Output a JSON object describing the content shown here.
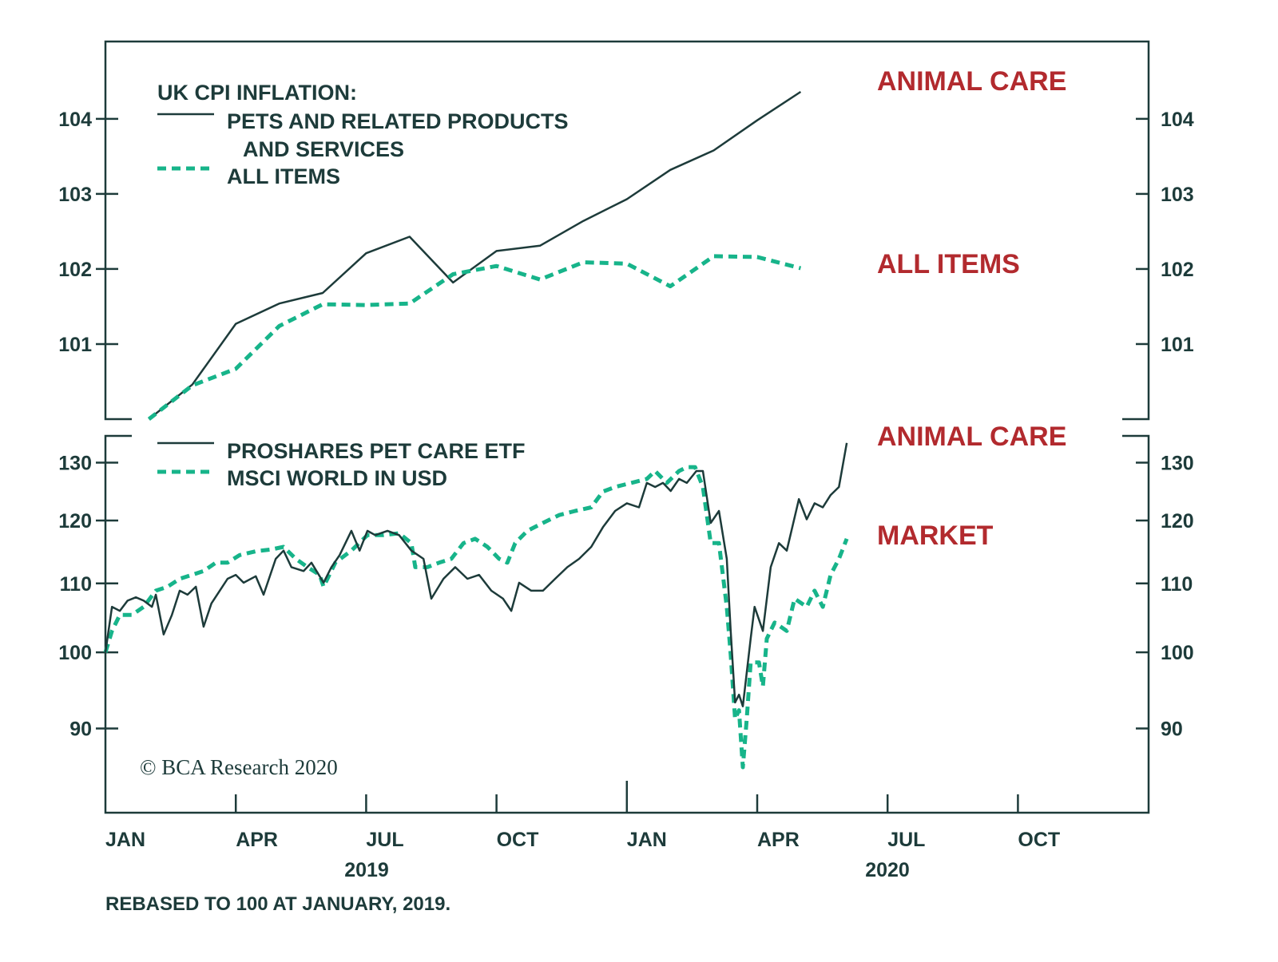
{
  "colors": {
    "axis": "#1d3b3a",
    "pets": "#1d3b3a",
    "market": "#17b48a",
    "annotation": "#b22a2e"
  },
  "chart_data": [
    {
      "type": "line",
      "title": "UK CPI INFLATION:",
      "x_unit": "months since January 2019",
      "ylim": [
        100,
        105.03
      ],
      "yticks": [
        101,
        102,
        103,
        104
      ],
      "ytick_labels": [
        "101",
        "102",
        "103",
        "104"
      ],
      "legend": {
        "placement": "top-left",
        "entries": [
          "PETS AND RELATED PRODUCTS",
          "AND SERVICES",
          "ALL ITEMS"
        ]
      },
      "annotations": [
        "ANIMAL CARE",
        "ALL ITEMS"
      ],
      "series": [
        {
          "name": "PETS AND RELATED PRODUCTS AND SERVICES",
          "style": "solid",
          "x": [
            1,
            2,
            3,
            4,
            5,
            6,
            7,
            8,
            9,
            10,
            11,
            12,
            13,
            14,
            15,
            16
          ],
          "values": [
            100.0,
            100.46,
            101.27,
            101.54,
            101.68,
            102.21,
            102.43,
            101.82,
            102.24,
            102.31,
            102.64,
            102.93,
            103.32,
            103.58,
            103.98,
            104.36
          ]
        },
        {
          "name": "ALL ITEMS",
          "style": "dashed",
          "x": [
            1,
            2,
            3,
            4,
            5,
            6,
            7,
            8,
            9,
            10,
            11,
            12,
            13,
            14,
            15,
            16
          ],
          "values": [
            100.0,
            100.45,
            100.67,
            101.24,
            101.53,
            101.52,
            101.54,
            101.93,
            102.04,
            101.86,
            102.09,
            102.07,
            101.77,
            102.17,
            102.16,
            102.01
          ]
        }
      ]
    },
    {
      "type": "line",
      "scale": "log",
      "x_unit": "months since January 2019",
      "ylim": [
        80.1,
        134.9
      ],
      "yticks": [
        90,
        100,
        110,
        120,
        130
      ],
      "ytick_labels": [
        "90",
        "100",
        "110",
        "120",
        "130"
      ],
      "legend": {
        "placement": "top-left",
        "entries": [
          "PROSHARES PET CARE ETF",
          "MSCI WORLD IN USD"
        ]
      },
      "annotations": [
        "ANIMAL CARE",
        "MARKET"
      ],
      "series": [
        {
          "name": "PROSHARES PET CARE ETF",
          "style": "solid",
          "x": [
            0,
            0.15,
            0.33,
            0.51,
            0.7,
            0.88,
            1.07,
            1.16,
            1.34,
            1.53,
            1.71,
            1.89,
            2.08,
            2.26,
            2.44,
            2.63,
            2.81,
            3.0,
            3.18,
            3.46,
            3.64,
            3.92,
            4.1,
            4.28,
            4.56,
            4.74,
            5.02,
            5.2,
            5.39,
            5.66,
            5.85,
            6.03,
            6.21,
            6.49,
            6.76,
            7.04,
            7.32,
            7.5,
            7.78,
            8.05,
            8.33,
            8.6,
            8.88,
            9.15,
            9.34,
            9.52,
            9.8,
            10.07,
            10.35,
            10.63,
            10.9,
            11.18,
            11.45,
            11.73,
            12.0,
            12.28,
            12.46,
            12.65,
            12.83,
            13.01,
            13.2,
            13.38,
            13.6,
            13.75,
            13.93,
            14.12,
            14.3,
            14.39,
            14.49,
            14.58,
            14.67,
            14.85,
            14.94,
            15.13,
            15.31,
            15.5,
            15.68,
            15.96,
            16.14,
            16.32,
            16.51,
            16.69,
            16.88,
            17.06
          ],
          "values": [
            100,
            106.5,
            105.9,
            107.4,
            107.9,
            107.4,
            106.5,
            108.3,
            102.5,
            105.3,
            108.9,
            108.3,
            109.5,
            103.6,
            107.0,
            108.9,
            110.7,
            111.3,
            110.1,
            111.1,
            108.3,
            113.8,
            115.1,
            112.5,
            111.9,
            113.2,
            110.1,
            112.5,
            114.4,
            118.3,
            115.1,
            118.3,
            117.6,
            118.3,
            117.6,
            115.1,
            113.8,
            107.7,
            110.7,
            112.5,
            110.7,
            111.3,
            108.9,
            107.7,
            105.9,
            110.1,
            108.9,
            108.9,
            110.7,
            112.5,
            113.8,
            115.7,
            118.9,
            121.6,
            122.9,
            122.2,
            126.4,
            125.7,
            126.4,
            125.0,
            127.1,
            126.4,
            128.5,
            128.5,
            119.6,
            121.6,
            113.8,
            103.0,
            93.3,
            94.3,
            92.8,
            101.9,
            106.5,
            103.0,
            112.5,
            116.3,
            115.1,
            123.6,
            120.2,
            122.9,
            122.2,
            124.3,
            125.7,
            133.6
          ]
        },
        {
          "name": "MSCI WORLD IN USD",
          "style": "dashed",
          "x": [
            0,
            0.15,
            0.33,
            0.61,
            0.88,
            1.16,
            1.43,
            1.71,
            1.99,
            2.26,
            2.54,
            2.81,
            3.09,
            3.46,
            3.82,
            4.1,
            4.38,
            4.65,
            4.93,
            5.02,
            5.29,
            5.66,
            6.03,
            6.4,
            6.76,
            7.04,
            7.13,
            7.41,
            7.68,
            7.96,
            8.24,
            8.51,
            8.79,
            9.06,
            9.25,
            9.43,
            9.71,
            10.07,
            10.44,
            10.81,
            11.18,
            11.45,
            11.73,
            12.1,
            12.46,
            12.65,
            12.92,
            13.2,
            13.38,
            13.57,
            13.75,
            13.93,
            14.12,
            14.3,
            14.39,
            14.49,
            14.58,
            14.67,
            14.76,
            14.85,
            15.04,
            15.13,
            15.22,
            15.4,
            15.68,
            15.86,
            16.14,
            16.32,
            16.51,
            16.69,
            16.88,
            17.06
          ],
          "values": [
            100,
            103.0,
            105.3,
            105.3,
            106.5,
            108.9,
            109.5,
            110.7,
            111.3,
            111.9,
            113.2,
            113.2,
            114.4,
            115.0,
            115.3,
            115.7,
            113.8,
            112.5,
            111.3,
            109.5,
            113.2,
            115.1,
            117.6,
            117.6,
            117.9,
            116.3,
            112.5,
            112.5,
            113.2,
            113.8,
            116.3,
            117.0,
            115.7,
            113.8,
            113.2,
            116.3,
            118.3,
            119.6,
            120.9,
            121.6,
            122.2,
            124.9,
            125.7,
            126.4,
            127.1,
            128.5,
            126.4,
            128.5,
            129.2,
            129.2,
            125.7,
            116.3,
            116.3,
            106.5,
            99.7,
            91.2,
            92.3,
            85.3,
            91.2,
            98.6,
            98.6,
            95.4,
            101.9,
            104.2,
            103.0,
            107.7,
            106.5,
            108.9,
            106.5,
            111.3,
            113.8,
            117.0
          ]
        }
      ]
    }
  ],
  "top": {
    "legend_title": "UK CPI INFLATION:",
    "legend_pets_line1": "PETS AND RELATED PRODUCTS",
    "legend_pets_line2": "AND SERVICES",
    "legend_all": "ALL ITEMS",
    "ann_pets": "ANIMAL CARE",
    "ann_all": "ALL ITEMS",
    "yticks": [
      "104",
      "103",
      "102",
      "101"
    ]
  },
  "bottom": {
    "legend_etf": "PROSHARES PET CARE ETF",
    "legend_msci": "MSCI WORLD IN USD",
    "ann_etf": "ANIMAL CARE",
    "ann_market": "MARKET",
    "yticks": [
      "130",
      "120",
      "110",
      "100",
      "90"
    ],
    "copyright": "© BCA Research 2020"
  },
  "xaxis": {
    "months": [
      "JAN",
      "APR",
      "JUL",
      "OCT",
      "JAN",
      "APR",
      "JUL",
      "OCT"
    ],
    "years": [
      "2019",
      "2020"
    ]
  },
  "footnote": "REBASED TO 100 AT JANUARY, 2019."
}
